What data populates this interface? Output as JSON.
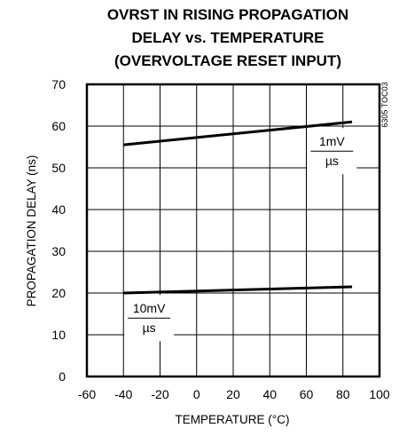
{
  "chart_data": {
    "type": "line",
    "title_lines": [
      "OVRST IN RISING PROPAGATION",
      "DELAY vs. TEMPERATURE",
      "(OVERVOLTAGE RESET INPUT)"
    ],
    "xlabel": "TEMPERATURE (°C)",
    "ylabel": "PROPAGATION DELAY (ns)",
    "xlim": [
      -60,
      100
    ],
    "ylim": [
      0,
      70
    ],
    "x_ticks": [
      -60,
      -40,
      -20,
      0,
      20,
      40,
      60,
      80,
      100
    ],
    "y_ticks": [
      0,
      10,
      20,
      30,
      40,
      50,
      60,
      70
    ],
    "grid": true,
    "series": [
      {
        "x": [
          -40,
          85
        ],
        "values": [
          55.5,
          61
        ]
      },
      {
        "x": [
          -40,
          85
        ],
        "values": [
          20,
          21.5
        ]
      }
    ],
    "annotations": [
      {
        "numerator": "1mV",
        "denominator": "µs",
        "x": 74,
        "y": 54
      },
      {
        "numerator": "10mV",
        "denominator": "µs",
        "x": -26,
        "y": 14
      }
    ],
    "side_code": "6305 TOC03"
  }
}
